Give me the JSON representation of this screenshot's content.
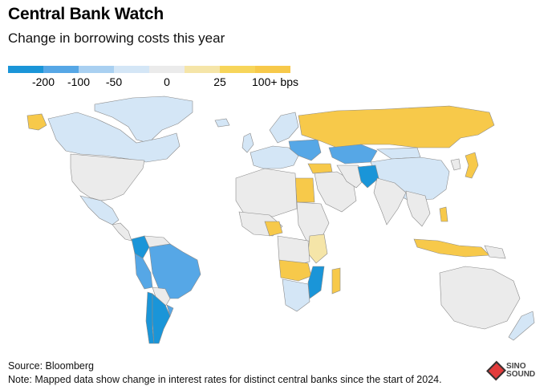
{
  "header": {
    "title": "Central Bank Watch",
    "subtitle": "Change in borrowing costs this year"
  },
  "legend": {
    "colors": [
      "#1a95d8",
      "#56a7e6",
      "#a9d0f1",
      "#d4e6f6",
      "#ebebeb",
      "#f5e5a8",
      "#f7d55a",
      "#f7c94a"
    ],
    "labels": [
      "-200",
      "-100",
      "-50",
      "0",
      "25",
      "100+ bps"
    ]
  },
  "map": {
    "land_color": "#e6e6e6",
    "stroke_color": "#ffffff",
    "country_outline_color": "#8a8a8a"
  },
  "footer": {
    "source": "Source: Bloomberg",
    "note": "Note: Mapped data show change in interest rates for distinct central banks since the start of 2024."
  },
  "watermark": {
    "text": "SINO SOUND"
  }
}
